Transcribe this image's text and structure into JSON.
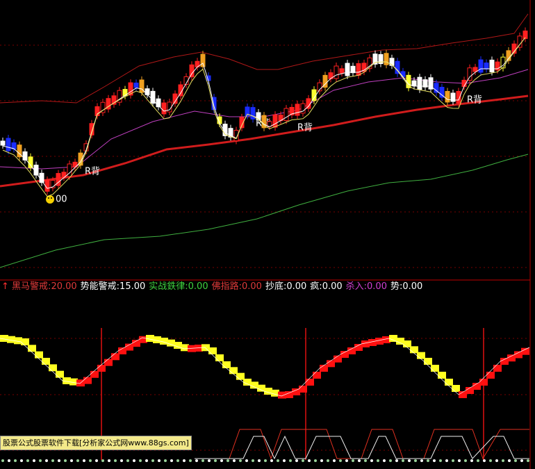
{
  "indicator_legend": {
    "arrow": "↑",
    "items": [
      {
        "label": "黑马警戒:",
        "value": "20.00",
        "color": "#e03a3a"
      },
      {
        "label": "势能警戒:",
        "value": "15.00",
        "color": "#ffffff"
      },
      {
        "label": "实战鉄律:",
        "value": "0.00",
        "color": "#3fd23f"
      },
      {
        "label": "佛指路:",
        "value": "0.00",
        "color": "#e03a3a"
      },
      {
        "label": "抄底:",
        "value": "0.00",
        "color": "#ffffff"
      },
      {
        "label": "疯:",
        "value": "0.00",
        "color": "#ffffff"
      },
      {
        "label": "杀入:",
        "value": "0.00",
        "color": "#d040d0"
      },
      {
        "label": "势:",
        "value": "0.00",
        "color": "#ffffff"
      }
    ]
  },
  "annotations": {
    "r_labels": [
      "R背",
      "R背",
      "R背",
      "R背"
    ],
    "smiley_label": "00"
  },
  "banner": "股票公式股票软件下载[分析家公式网www.88gs.com]"
}
